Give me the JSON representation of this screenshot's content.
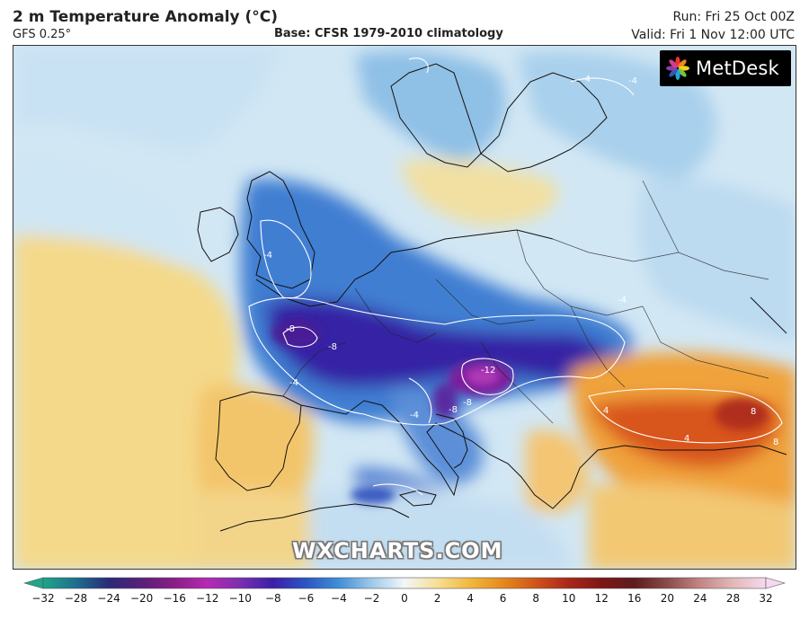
{
  "header": {
    "title": "2 m Temperature Anomaly (°C)",
    "model": "GFS 0.25°",
    "base": "Base: CFSR 1979-2010 climatology",
    "run": "Run: Fri 25 Oct 00Z",
    "valid": "Valid: Fri 1 Nov 12:00 UTC"
  },
  "branding": {
    "provider_logo_text": "MetDesk",
    "watermark": "WXCHARTS.COM"
  },
  "map": {
    "variable": "2 m Temperature Anomaly",
    "unit": "°C",
    "contour_labels": [
      "-4",
      "-8",
      "-8",
      "-8",
      "-12",
      "-8",
      "-4",
      "-4",
      "4",
      "4",
      "8",
      "8",
      "-4",
      "-4",
      "-4"
    ]
  },
  "colorbar": {
    "ticks": [
      "−32",
      "−28",
      "−24",
      "−20",
      "−16",
      "−12",
      "−10",
      "−8",
      "−6",
      "−4",
      "−2",
      "0",
      "2",
      "4",
      "6",
      "8",
      "10",
      "12",
      "16",
      "20",
      "24",
      "28",
      "32"
    ],
    "colors": {
      "c_m32": "#1fa58a",
      "c_m28": "#1d6f8e",
      "c_m24": "#2a2a78",
      "c_m20": "#5a1f7a",
      "c_m16": "#8a1e86",
      "c_m12": "#b62ab4",
      "c_m10": "#7b2fb0",
      "c_m8": "#3b1ea8",
      "c_m6": "#2c55c4",
      "c_m4": "#3f8fd6",
      "c_m2": "#9ec9ea",
      "c_0": "#f2f6f8",
      "c_2": "#f7df95",
      "c_4": "#f1b83c",
      "c_6": "#e5891f",
      "c_8": "#d0531a",
      "c_10": "#a8271a",
      "c_12": "#7e1616",
      "c_16": "#5e1c1c",
      "c_20": "#8a4b4b",
      "c_24": "#c38585",
      "c_28": "#e2b8b8",
      "c_32": "#f6d9ee"
    }
  }
}
